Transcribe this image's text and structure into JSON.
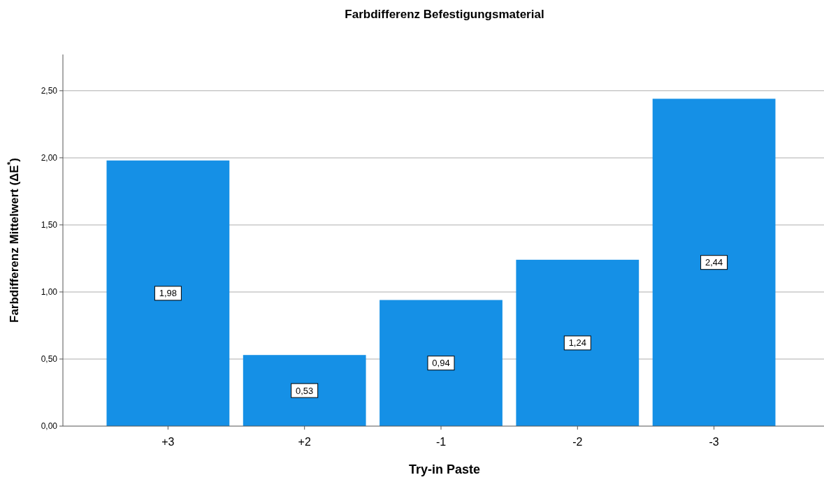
{
  "chart_data": {
    "type": "bar",
    "title": "Farbdifferenz Befestigungsmaterial",
    "xlabel": "Try-in Paste",
    "ylabel": "Farbdifferenz Mittelwert (ΔE$^{*}$)",
    "categories": [
      "+3",
      "+2",
      "-1",
      "-2",
      "-3"
    ],
    "values": [
      1.98,
      0.53,
      0.94,
      1.24,
      2.44
    ],
    "value_labels": [
      "1,98",
      "0,53",
      "0,94",
      "1,24",
      "2,44"
    ],
    "color": "#1590e6",
    "ylim": [
      0,
      2.77
    ],
    "yticks": [
      {
        "value": 0,
        "label": "0,00"
      },
      {
        "value": 0.5,
        "label": "0,50"
      },
      {
        "value": 1,
        "label": "1,00"
      },
      {
        "value": 1.5,
        "label": "1,50"
      },
      {
        "value": 2,
        "label": "2,00"
      },
      {
        "value": 2.5,
        "label": "2,50"
      }
    ],
    "grid": "y"
  }
}
